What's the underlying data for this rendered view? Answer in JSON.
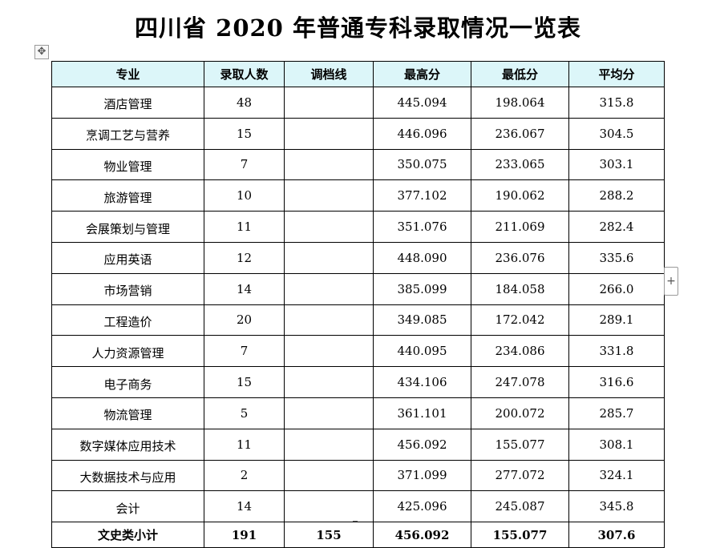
{
  "title": "四川省 2020 年普通专科录取情况一览表",
  "icons": {
    "move": "move-icon",
    "add_column": "plus-icon"
  },
  "colors": {
    "header_bg": "#dcf6f9",
    "border": "#000000"
  },
  "table": {
    "headers": [
      "专业",
      "录取人数",
      "调档线",
      "最高分",
      "最低分",
      "平均分"
    ],
    "rows": [
      {
        "major": "酒店管理",
        "admitted": "48",
        "cutoff": "",
        "max": "445.094",
        "min": "198.064",
        "avg": "315.8"
      },
      {
        "major": "烹调工艺与营养",
        "admitted": "15",
        "cutoff": "",
        "max": "446.096",
        "min": "236.067",
        "avg": "304.5"
      },
      {
        "major": "物业管理",
        "admitted": "7",
        "cutoff": "",
        "max": "350.075",
        "min": "233.065",
        "avg": "303.1"
      },
      {
        "major": "旅游管理",
        "admitted": "10",
        "cutoff": "",
        "max": "377.102",
        "min": "190.062",
        "avg": "288.2"
      },
      {
        "major": "会展策划与管理",
        "admitted": "11",
        "cutoff": "",
        "max": "351.076",
        "min": "211.069",
        "avg": "282.4"
      },
      {
        "major": "应用英语",
        "admitted": "12",
        "cutoff": "",
        "max": "448.090",
        "min": "236.076",
        "avg": "335.6"
      },
      {
        "major": "市场营销",
        "admitted": "14",
        "cutoff": "",
        "max": "385.099",
        "min": "184.058",
        "avg": "266.0"
      },
      {
        "major": "工程造价",
        "admitted": "20",
        "cutoff": "",
        "max": "349.085",
        "min": "172.042",
        "avg": "289.1"
      },
      {
        "major": "人力资源管理",
        "admitted": "7",
        "cutoff": "",
        "max": "440.095",
        "min": "234.086",
        "avg": "331.8"
      },
      {
        "major": "电子商务",
        "admitted": "15",
        "cutoff": "",
        "max": "434.106",
        "min": "247.078",
        "avg": "316.6"
      },
      {
        "major": "物流管理",
        "admitted": "5",
        "cutoff": "",
        "max": "361.101",
        "min": "200.072",
        "avg": "285.7"
      },
      {
        "major": "数字媒体应用技术",
        "admitted": "11",
        "cutoff": "",
        "max": "456.092",
        "min": "155.077",
        "avg": "308.1"
      },
      {
        "major": "大数据技术与应用",
        "admitted": "2",
        "cutoff": "",
        "max": "371.099",
        "min": "277.072",
        "avg": "324.1"
      },
      {
        "major": "会计",
        "admitted": "14",
        "cutoff": "",
        "max": "425.096",
        "min": "245.087",
        "avg": "345.8"
      }
    ],
    "total": {
      "major": "文史类小计",
      "admitted": "191",
      "cutoff": "155",
      "max": "456.092",
      "min": "155.077",
      "avg": "307.6"
    }
  }
}
